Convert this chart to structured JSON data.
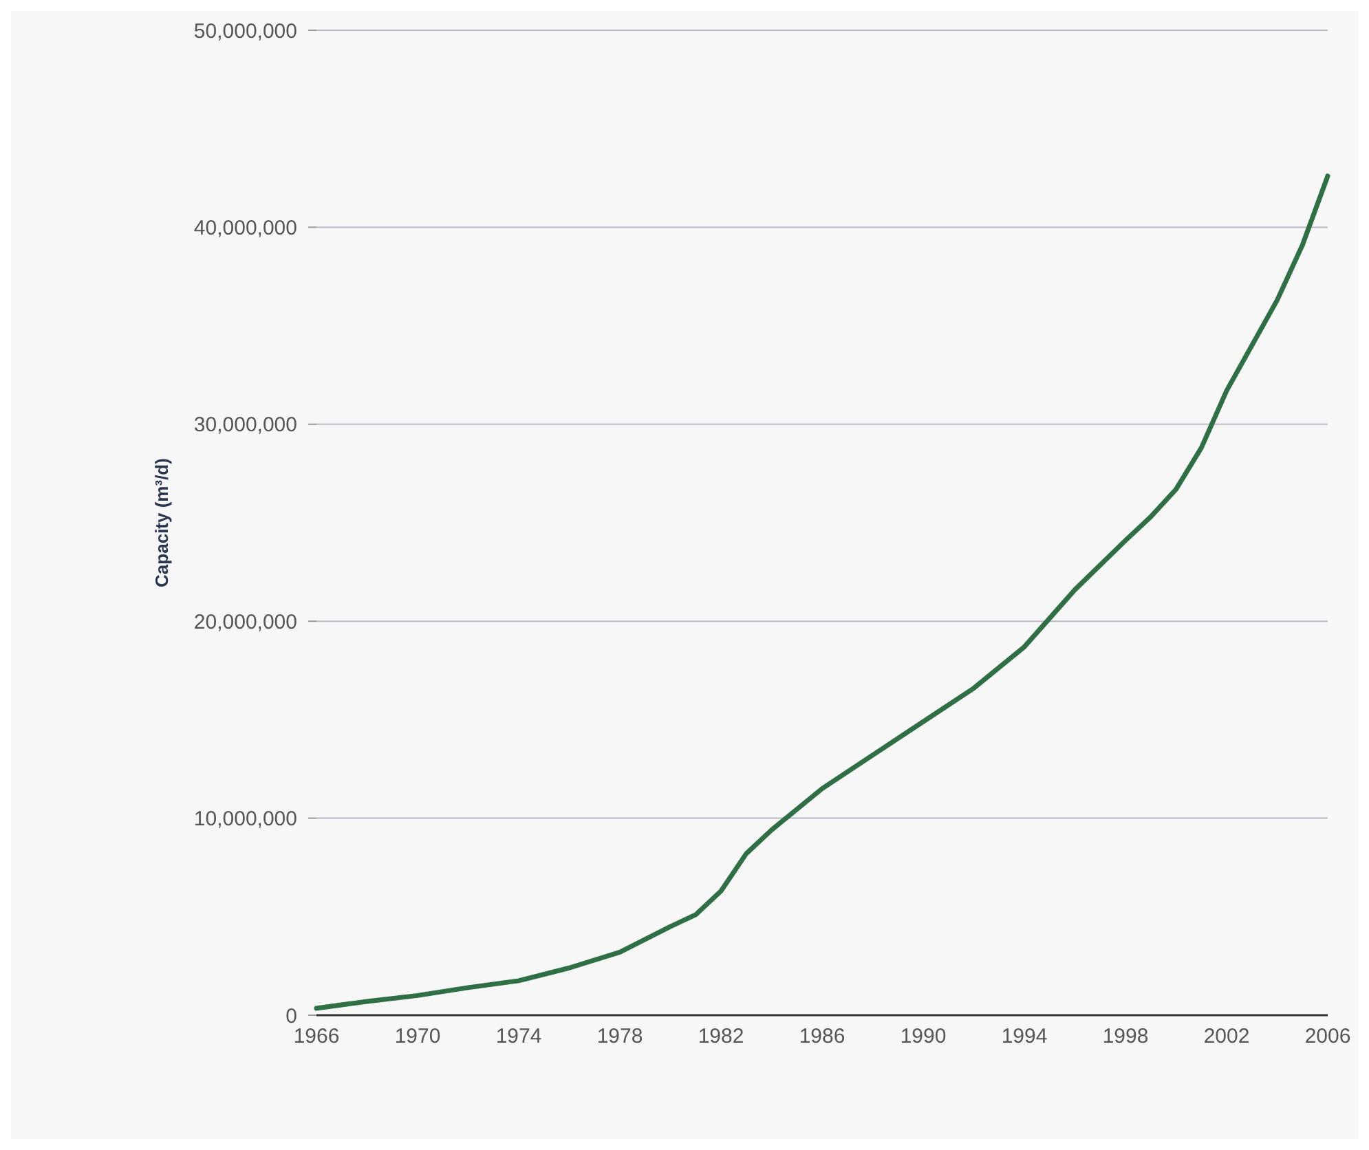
{
  "chart_data": {
    "type": "line",
    "ylabel": "Capacity (m³/d)",
    "x": [
      1966,
      1968,
      1970,
      1972,
      1974,
      1976,
      1978,
      1980,
      1981,
      1982,
      1983,
      1984,
      1986,
      1988,
      1990,
      1992,
      1994,
      1996,
      1998,
      1999,
      2000,
      2001,
      2002,
      2004,
      2005,
      2006
    ],
    "series": [
      {
        "color": "#2e7044",
        "values": [
          350000,
          700000,
          1000000,
          1400000,
          1750000,
          2400000,
          3200000,
          4500000,
          5100000,
          6300000,
          8200000,
          9400000,
          11500000,
          13200000,
          14900000,
          16600000,
          18700000,
          21600000,
          24100000,
          25300000,
          26700000,
          28800000,
          31700000,
          36300000,
          39100000,
          42600000
        ]
      }
    ],
    "xlim": [
      1966,
      2006
    ],
    "xticks": [
      1966,
      1970,
      1974,
      1978,
      1982,
      1986,
      1990,
      1994,
      1998,
      2002,
      2006
    ],
    "ylim": [
      0,
      50000000
    ],
    "yticks": [
      {
        "value": 0,
        "label": "0"
      },
      {
        "value": 10000000,
        "label": "10,000,000"
      },
      {
        "value": 20000000,
        "label": "20,000,000"
      },
      {
        "value": 30000000,
        "label": "30,000,000"
      },
      {
        "value": 40000000,
        "label": "40,000,000"
      },
      {
        "value": 50000000,
        "label": "50,000,000"
      }
    ],
    "grid": "y",
    "marker": "none",
    "line_style": "solid"
  }
}
